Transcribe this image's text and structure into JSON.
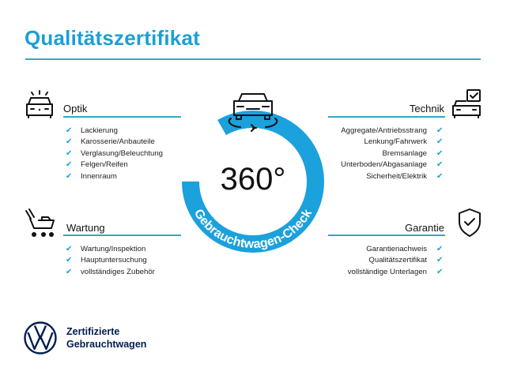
{
  "title": "Qualitätszertifikat",
  "badge": {
    "main": "360°",
    "ring_text": "Gebrauchtwagen-Check",
    "color": "#1ba1dc",
    "icon": "car-rotate-icon"
  },
  "sections": {
    "optik": {
      "label": "Optik",
      "icon": "car-light-icon",
      "items": [
        "Lackierung",
        "Karosserie/Anbauteile",
        "Verglasung/Beleuchtung",
        "Felgen/Reifen",
        "Innenraum"
      ]
    },
    "wartung": {
      "label": "Wartung",
      "icon": "maintenance-cart-icon",
      "items": [
        "Wartung/Inspektion",
        "Hauptuntersuchung",
        "vollständiges Zubehör"
      ]
    },
    "technik": {
      "label": "Technik",
      "icon": "car-check-icon",
      "items": [
        "Aggregate/Antriebsstrang",
        "Lenkung/Fahrwerk",
        "Bremsanlage",
        "Unterboden/Abgasanlage",
        "Sicherheit/Elektrik"
      ]
    },
    "garantie": {
      "label": "Garantie",
      "icon": "shield-check-icon",
      "items": [
        "Garantienachweis",
        "Qualitätszertifikat",
        "vollständige Unterlagen"
      ]
    }
  },
  "check_glyph": "✔",
  "footer": {
    "logo": "VW",
    "line1": "Zertifizierte",
    "line2": "Gebrauchtwagen"
  },
  "colors": {
    "accent": "#1b9fd6",
    "rule": "#34a6cc",
    "brand": "#001e50"
  }
}
